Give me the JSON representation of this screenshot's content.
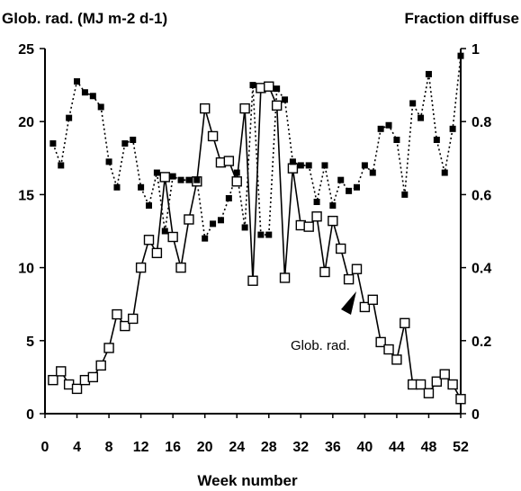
{
  "chart_data": {
    "type": "line",
    "title": "",
    "xlabel": "Week number",
    "ylabel_left": "Glob. rad. (MJ m-2 d-1)",
    "ylabel_right": "Fraction diffuse",
    "xlim": [
      0,
      52
    ],
    "ylim_left": [
      0,
      25
    ],
    "ylim_right": [
      0,
      1
    ],
    "x_ticks": [
      "0",
      "4",
      "8",
      "12",
      "16",
      "20",
      "24",
      "28",
      "32",
      "36",
      "40",
      "44",
      "48",
      "52"
    ],
    "y_left_ticks": [
      "0",
      "5",
      "10",
      "15",
      "20",
      "25"
    ],
    "y_right_ticks": [
      "0",
      "0.2",
      "0.4",
      "0.6",
      "0.8",
      "1"
    ],
    "grid": false,
    "annotation": "Glob. rad.",
    "series": [
      {
        "key": "glob_rad",
        "axis": "left",
        "style": "solid line, open squares",
        "x": [
          1,
          2,
          3,
          4,
          5,
          6,
          7,
          8,
          9,
          10,
          11,
          12,
          13,
          14,
          15,
          16,
          17,
          18,
          19,
          20,
          21,
          22,
          23,
          24,
          25,
          26,
          27,
          28,
          29,
          30,
          31,
          32,
          33,
          34,
          35,
          36,
          37,
          38,
          39,
          40,
          41,
          42,
          43,
          44,
          45,
          46,
          47,
          48,
          49,
          50,
          51,
          52
        ],
        "values": [
          2.3,
          2.9,
          2.0,
          1.7,
          2.3,
          2.5,
          3.3,
          4.5,
          6.8,
          6.0,
          6.5,
          10.0,
          11.9,
          11.0,
          16.2,
          12.1,
          10.0,
          13.3,
          15.9,
          20.9,
          19.0,
          17.2,
          17.3,
          15.9,
          20.9,
          9.1,
          22.3,
          22.4,
          21.1,
          9.3,
          16.8,
          12.9,
          12.8,
          13.5,
          9.7,
          13.2,
          11.3,
          9.2,
          9.9,
          7.3,
          7.8,
          4.9,
          4.4,
          3.7,
          6.2,
          2.0,
          2.0,
          1.4,
          2.2,
          2.7,
          2.0,
          1.0
        ]
      },
      {
        "key": "fraction_diffuse",
        "axis": "right",
        "style": "dotted line, filled squares",
        "x": [
          1,
          2,
          3,
          4,
          5,
          6,
          7,
          8,
          9,
          10,
          11,
          12,
          13,
          14,
          15,
          16,
          17,
          18,
          19,
          20,
          21,
          22,
          23,
          24,
          25,
          26,
          27,
          28,
          29,
          30,
          31,
          32,
          33,
          34,
          35,
          36,
          37,
          38,
          39,
          40,
          41,
          42,
          43,
          44,
          45,
          46,
          47,
          48,
          49,
          50,
          51,
          52
        ],
        "values": [
          0.74,
          0.68,
          0.81,
          0.91,
          0.88,
          0.87,
          0.84,
          0.69,
          0.62,
          0.74,
          0.75,
          0.62,
          0.57,
          0.66,
          0.5,
          0.65,
          0.64,
          0.64,
          0.64,
          0.48,
          0.52,
          0.53,
          0.59,
          0.66,
          0.51,
          0.9,
          0.49,
          0.49,
          0.89,
          0.86,
          0.69,
          0.68,
          0.68,
          0.58,
          0.68,
          0.57,
          0.64,
          0.61,
          0.62,
          0.68,
          0.66,
          0.78,
          0.79,
          0.75,
          0.6,
          0.85,
          0.81,
          0.93,
          0.75,
          0.66,
          0.78,
          0.98
        ]
      }
    ]
  }
}
